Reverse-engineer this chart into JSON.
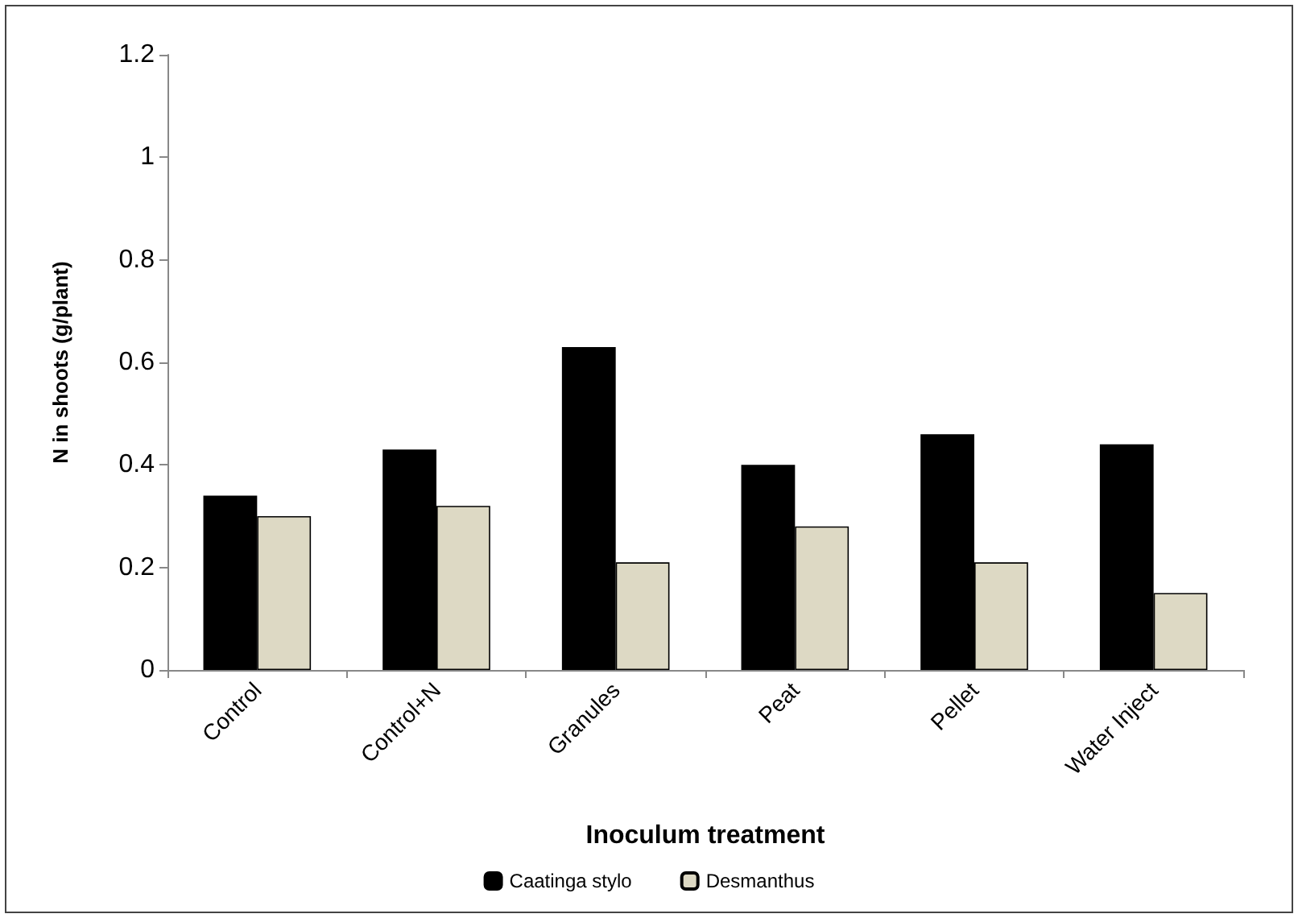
{
  "chart_data": {
    "type": "bar",
    "xlabel": "Inoculum treatment",
    "ylabel": "N in shoots (g/plant)",
    "categories": [
      "Control",
      "Control+N",
      "Granules",
      "Peat",
      "Pellet",
      "Water Inject"
    ],
    "series": [
      {
        "name": "Caatinga stylo",
        "color": "#000000",
        "values": [
          0.34,
          0.43,
          0.63,
          0.4,
          0.46,
          0.44
        ]
      },
      {
        "name": "Desmanthus",
        "color": "#ddd9c4",
        "values": [
          0.3,
          0.32,
          0.21,
          0.28,
          0.21,
          0.15
        ]
      }
    ],
    "ylim": [
      0,
      1.2
    ],
    "yticks": [
      0,
      0.2,
      0.4,
      0.6,
      0.8,
      1,
      1.2
    ],
    "grid": false,
    "legend": "bottom"
  }
}
